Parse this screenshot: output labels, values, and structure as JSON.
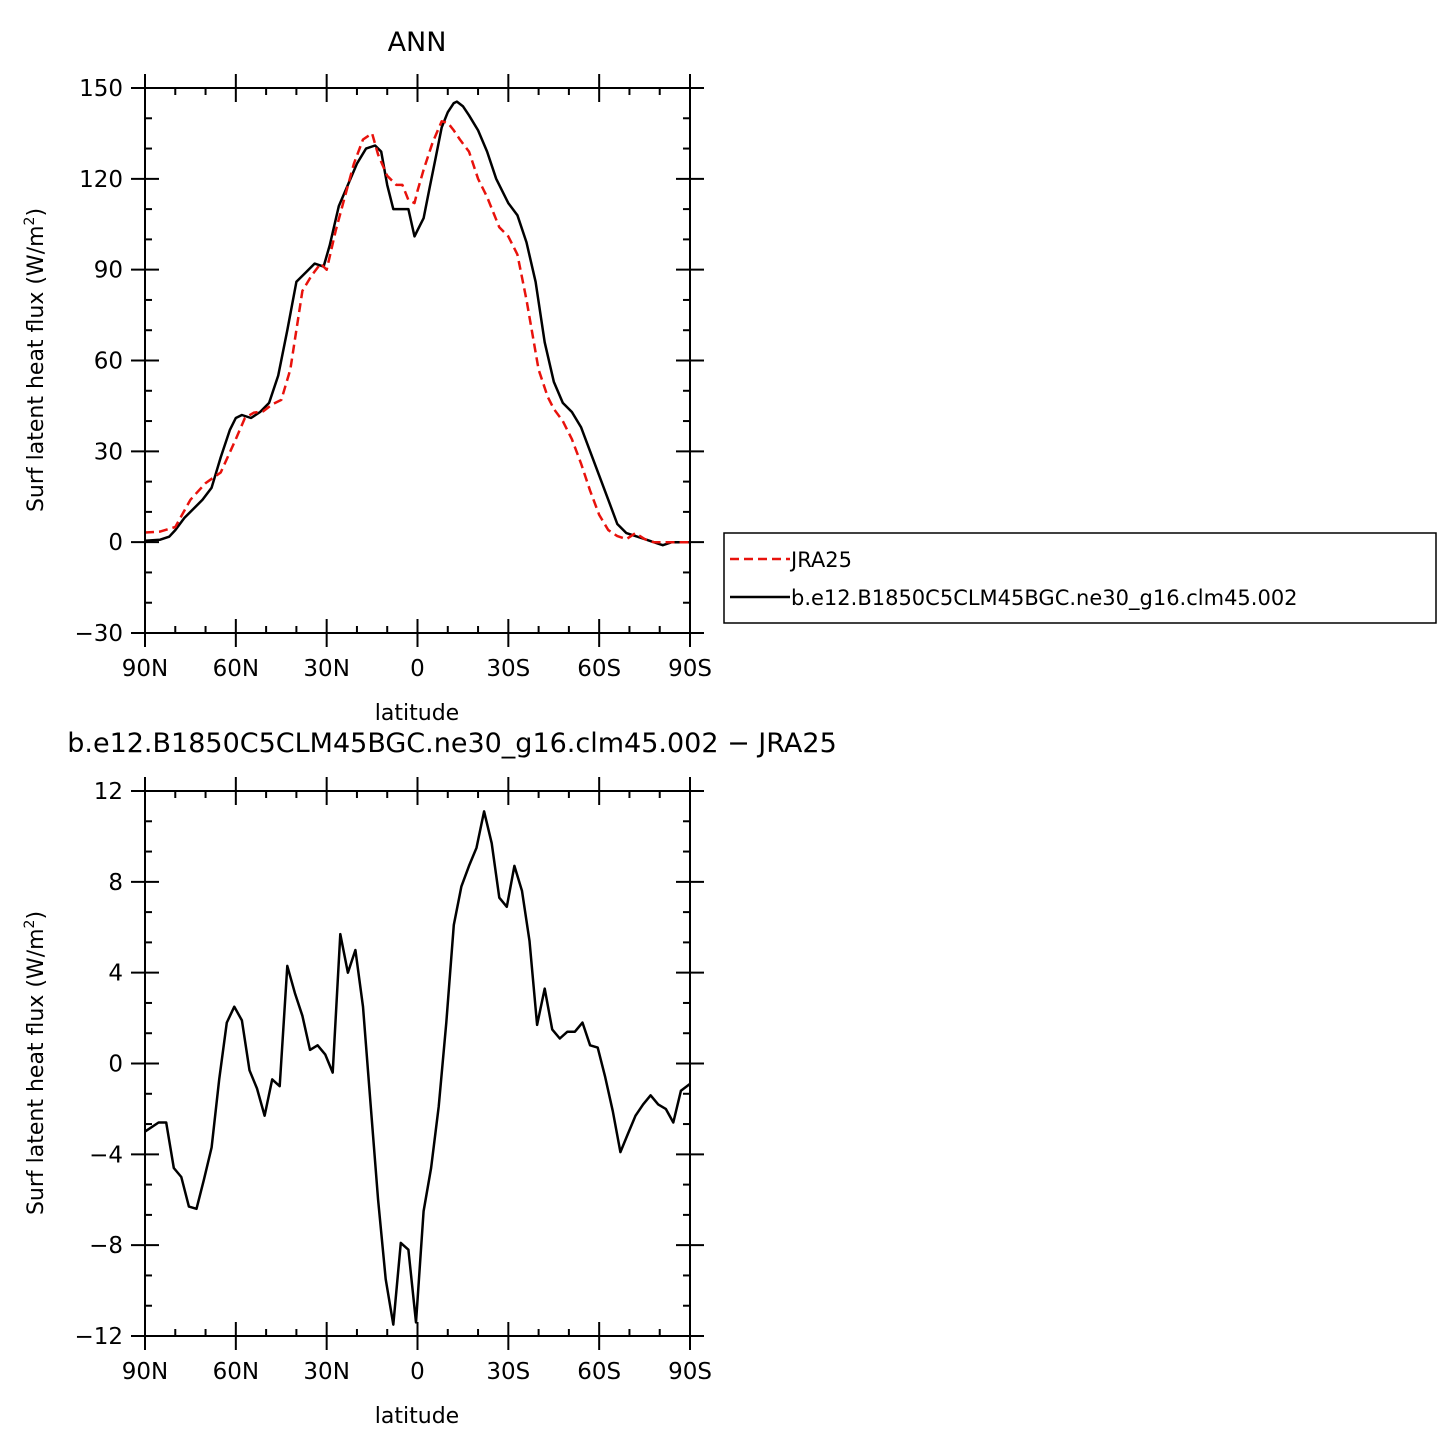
{
  "chart_data": [
    {
      "type": "line",
      "title": "ANN",
      "xlabel": "latitude",
      "ylabel": "Surf latent heat flux (W/m²)",
      "ylabel_main": "Surf latent heat flux (W/m",
      "ylabel_sup": "2",
      "ylabel_end": ")",
      "xlim": [
        -90,
        90
      ],
      "ylim": [
        -30,
        150
      ],
      "xticks": [
        -90,
        -60,
        -30,
        0,
        30,
        60,
        90
      ],
      "xtick_labels": [
        "90N",
        "60N",
        "30N",
        "0",
        "30S",
        "60S",
        "90S"
      ],
      "yticks": [
        -30,
        0,
        30,
        60,
        90,
        120,
        150
      ],
      "ytick_labels": [
        "−30",
        "0",
        "30",
        "60",
        "90",
        "120",
        "150"
      ],
      "legend": {
        "placement": "right",
        "entries": [
          "JRA25",
          "b.e12.B1850C5CLM45BGC.ne30_g16.clm45.002"
        ]
      },
      "series": [
        {
          "name": "JRA25",
          "color": "#e8120c",
          "dash": "dashed",
          "x": [
            -90,
            -85,
            -80,
            -75,
            -70,
            -65,
            -60,
            -57,
            -54,
            -51,
            -48,
            -45,
            -42,
            -38,
            -35,
            -32,
            -30,
            -27,
            -24,
            -21,
            -18,
            -15,
            -13,
            -10,
            -7,
            -5,
            -3,
            -1,
            0,
            2,
            5,
            8,
            10,
            12,
            14,
            17,
            20,
            23,
            27,
            30,
            33,
            36,
            40,
            43,
            45,
            48,
            51,
            54,
            57,
            60,
            63,
            66,
            69,
            72,
            75,
            78,
            81,
            84,
            87,
            90
          ],
          "y": [
            3.2,
            3.5,
            5,
            14,
            19.5,
            23,
            34,
            41,
            42.8,
            43.2,
            45.5,
            47,
            57,
            83,
            88,
            92,
            90,
            103,
            114,
            125,
            133,
            135,
            128,
            121,
            118,
            118,
            113,
            112,
            116,
            123,
            132,
            139,
            138.5,
            136,
            133,
            129,
            120,
            114,
            104,
            101,
            95,
            80,
            57,
            48,
            44,
            40,
            34,
            26,
            17,
            9,
            4,
            2,
            1,
            3,
            1,
            0,
            0,
            0,
            0,
            0
          ]
        },
        {
          "name": "b.e12.B1850C5CLM45BGC.ne30_g16.clm45.002",
          "color": "#000000",
          "dash": "solid",
          "x": [
            -90,
            -85,
            -82,
            -80,
            -77,
            -74,
            -71,
            -68,
            -65,
            -62,
            -60,
            -58,
            -55,
            -52,
            -49,
            -46,
            -43,
            -40,
            -37,
            -34,
            -31,
            -29,
            -26,
            -23,
            -20,
            -17,
            -14,
            -12,
            -10,
            -8,
            -5,
            -3,
            -1,
            0,
            2,
            4,
            6,
            8,
            10,
            12,
            13,
            15,
            17,
            20,
            23,
            26,
            30,
            33,
            36,
            39,
            42,
            45,
            48,
            51,
            54,
            57,
            60,
            63,
            66,
            69,
            72,
            75,
            78,
            81,
            84,
            87,
            90
          ],
          "y": [
            0.5,
            0.8,
            1.8,
            4,
            8,
            11,
            14,
            18,
            28,
            37,
            41,
            42,
            41,
            43,
            46,
            55,
            70,
            86,
            89,
            92,
            91,
            98,
            111,
            118,
            125,
            130,
            131,
            129,
            118,
            110,
            110,
            110,
            101,
            103,
            107,
            117,
            127,
            137,
            142,
            145,
            145.5,
            144,
            141,
            136,
            129,
            120,
            112,
            108,
            99,
            86,
            66,
            53,
            46,
            43,
            38,
            30,
            22,
            14,
            6,
            3,
            2,
            1,
            0,
            -1,
            0,
            0,
            0
          ]
        }
      ]
    },
    {
      "type": "line",
      "title": "b.e12.B1850C5CLM45BGC.ne30_g16.clm45.002 − JRA25",
      "xlabel": "latitude",
      "ylabel": "Surf latent heat flux (W/m²)",
      "ylabel_main": "Surf latent heat flux (W/m",
      "ylabel_sup": "2",
      "ylabel_end": ")",
      "xlim": [
        -90,
        90
      ],
      "ylim": [
        -12,
        12
      ],
      "xticks": [
        -90,
        -60,
        -30,
        0,
        30,
        60,
        90
      ],
      "xtick_labels": [
        "90N",
        "60N",
        "30N",
        "0",
        "30S",
        "60S",
        "90S"
      ],
      "yticks": [
        -12,
        -8,
        -4,
        0,
        4,
        8,
        12
      ],
      "ytick_labels": [
        "−12",
        "−8",
        "−4",
        "0",
        "4",
        "8",
        "12"
      ],
      "series": [
        {
          "color": "#000000",
          "dash": "solid",
          "x": [
            -90,
            -85.5,
            -83,
            -80.5,
            -78,
            -75.5,
            -73,
            -70.5,
            -68,
            -65.5,
            -63,
            -60.5,
            -58,
            -55.5,
            -53,
            -50.5,
            -48,
            -45.5,
            -43,
            -40.5,
            -38,
            -35.5,
            -33,
            -30.5,
            -28,
            -25.5,
            -23,
            -20.5,
            -18,
            -15.5,
            -13,
            -10.5,
            -8,
            -5.5,
            -3,
            -0.5,
            2,
            4.5,
            7,
            9.5,
            12,
            14.5,
            17,
            19.5,
            22,
            24.5,
            27,
            29.5,
            32,
            34.5,
            37,
            39.5,
            42,
            44.5,
            47,
            49.5,
            52,
            54.5,
            57,
            59.5,
            62,
            64.5,
            67,
            69.5,
            72,
            74.5,
            77,
            79.5,
            82,
            84.5,
            87,
            90
          ],
          "y": [
            -3,
            -2.6,
            -2.6,
            -4.6,
            -5,
            -6.3,
            -6.4,
            -5.1,
            -3.7,
            -0.7,
            1.8,
            2.5,
            1.9,
            -0.3,
            -1.1,
            -2.3,
            -0.7,
            -1,
            4.3,
            3.1,
            2.1,
            0.6,
            0.8,
            0.4,
            -0.4,
            5.7,
            4,
            5,
            2.5,
            -1.8,
            -6,
            -9.5,
            -11.5,
            -7.9,
            -8.2,
            -11.4,
            -6.5,
            -4.6,
            -1.9,
            1.8,
            6.1,
            7.8,
            8.7,
            9.5,
            11.1,
            9.7,
            7.3,
            6.9,
            8.7,
            7.6,
            5.4,
            1.7,
            3.3,
            1.5,
            1.1,
            1.4,
            1.4,
            1.8,
            0.8,
            0.7,
            -0.6,
            -2.1,
            -3.9,
            -3.1,
            -2.3,
            -1.8,
            -1.4,
            -1.8,
            -2,
            -2.6,
            -1.2,
            -0.9
          ]
        }
      ]
    }
  ]
}
